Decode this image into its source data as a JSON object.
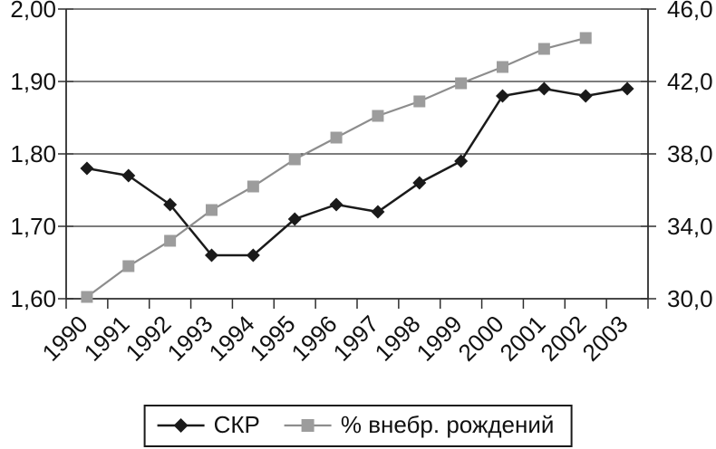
{
  "chart_data": {
    "type": "line",
    "title": "",
    "x": [
      "1990",
      "1991",
      "1992",
      "1993",
      "1994",
      "1995",
      "1996",
      "1997",
      "1998",
      "1999",
      "2000",
      "2001",
      "2002",
      "2003"
    ],
    "series": [
      {
        "name": "СКР",
        "axis": "left",
        "marker": "diamond",
        "line_color": "#1a1a1a",
        "marker_color": "#1a1a1a",
        "values": [
          1.78,
          1.77,
          1.73,
          1.66,
          1.66,
          1.71,
          1.73,
          1.72,
          1.76,
          1.79,
          1.88,
          1.89,
          1.88,
          1.89
        ]
      },
      {
        "name": "% внебр. рождений",
        "axis": "right",
        "marker": "square",
        "line_color": "#8d8d8d",
        "marker_color": "#9c9c9c",
        "values": [
          30.1,
          31.8,
          33.2,
          34.9,
          36.2,
          37.7,
          38.9,
          40.1,
          40.9,
          41.9,
          42.8,
          43.8,
          44.4
        ]
      }
    ],
    "left_axis": {
      "min": 1.6,
      "max": 2.0,
      "tick_labels": [
        "2,00",
        "1,90",
        "1,80",
        "1,70",
        "1,60"
      ],
      "tick_values": [
        2.0,
        1.9,
        1.8,
        1.7,
        1.6
      ]
    },
    "right_axis": {
      "min": 30,
      "max": 46,
      "tick_labels": [
        "46,0",
        "42,0",
        "38,0",
        "34,0",
        "30,0"
      ],
      "tick_values": [
        46,
        42,
        38,
        34,
        30
      ]
    },
    "grid": true,
    "legend_position": "bottom",
    "axis_color": "#2e2e2e",
    "grid_color": "#2e2e2e"
  },
  "legend": {
    "items": [
      {
        "label": "СКР"
      },
      {
        "label": "% внебр. рождений"
      }
    ]
  }
}
